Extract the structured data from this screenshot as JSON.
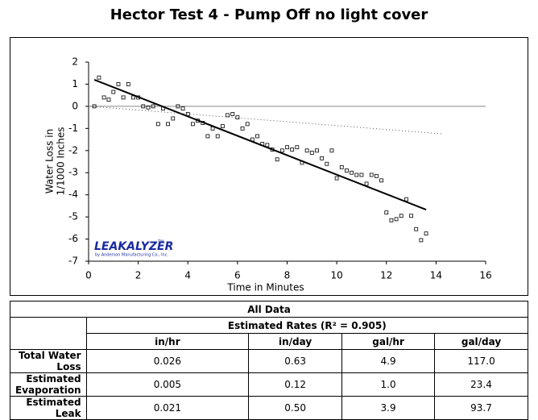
{
  "chart_data": {
    "type": "scatter",
    "title": "Hector Test 4 - Pump Off no light cover",
    "y_label": [
      "Water Loss in",
      "1/1000 Inches"
    ],
    "x_label": "Time in Minutes",
    "logo": "LEAKALYZER",
    "logo_mark": "TM",
    "logo_sub": "by Anderson Manufacturing Co., Inc.",
    "xlim": [
      0,
      16
    ],
    "xticks": [
      0,
      2,
      4,
      6,
      8,
      10,
      12,
      14,
      16
    ],
    "ylim": [
      -7,
      2
    ],
    "yticks": [
      -7,
      -6,
      -5,
      -4,
      -3,
      -2,
      -1,
      0,
      1,
      2
    ],
    "series": [
      {
        "type": "scatter",
        "color": "#000000",
        "x": [
          0.23,
          0.42,
          0.62,
          0.81,
          1.0,
          1.2,
          1.4,
          1.6,
          1.8,
          2.0,
          2.2,
          2.4,
          2.6,
          2.8,
          3.0,
          3.2,
          3.4,
          3.6,
          3.8,
          4.0,
          4.2,
          4.4,
          4.6,
          4.8,
          5.0,
          5.2,
          5.4,
          5.6,
          5.8,
          6.0,
          6.2,
          6.4,
          6.6,
          6.8,
          7.0,
          7.2,
          7.4,
          7.6,
          7.8,
          8.0,
          8.2,
          8.4,
          8.6,
          8.8,
          9.0,
          9.2,
          9.4,
          9.6,
          9.8,
          10.0,
          10.2,
          10.4,
          10.6,
          10.8,
          11.0,
          11.2,
          11.4,
          11.6,
          11.8,
          12.0,
          12.2,
          12.4,
          12.6,
          12.8,
          13.0,
          13.2,
          13.4,
          13.6
        ],
        "values": [
          0.0,
          1.3,
          0.4,
          0.3,
          0.65,
          1.0,
          0.4,
          1.0,
          0.4,
          0.4,
          0.0,
          -0.05,
          0.0,
          -0.8,
          -0.1,
          -0.8,
          -0.55,
          0.0,
          -0.1,
          -0.35,
          -0.8,
          -0.65,
          -0.75,
          -1.35,
          -1.0,
          -1.35,
          -0.9,
          -0.4,
          -0.35,
          -0.5,
          -1.0,
          -0.8,
          -1.5,
          -1.35,
          -1.7,
          -1.75,
          -1.95,
          -2.4,
          -2.0,
          -1.85,
          -1.95,
          -1.85,
          -2.55,
          -2.0,
          -2.1,
          -2.0,
          -2.35,
          -2.6,
          -2.0,
          -3.25,
          -2.75,
          -2.9,
          -3.0,
          -3.1,
          -3.1,
          -3.5,
          -3.1,
          -3.15,
          -3.35,
          -4.8,
          -5.15,
          -5.1,
          -4.95,
          -4.2,
          -4.95,
          -5.55,
          -6.05,
          -5.75
        ]
      },
      {
        "type": "line",
        "color": "#000000",
        "dash": false,
        "x": [
          0.23,
          13.6
        ],
        "values": [
          1.2,
          -4.67
        ]
      },
      {
        "type": "line",
        "color": "#555555",
        "dash": true,
        "x": [
          0.07,
          14.3
        ],
        "values": [
          0.0,
          -1.25
        ]
      }
    ]
  },
  "table": {
    "title": "All Data",
    "group_header": "Estimated Rates (R² = 0.905)",
    "columns": [
      "in/hr",
      "in/day",
      "gal/hr",
      "gal/day"
    ],
    "rows": [
      [
        "Total Water Loss",
        "0.026",
        "0.63",
        "4.9",
        "117.0"
      ],
      [
        "Estimated Evaporation",
        "0.005",
        "0.12",
        "1.0",
        "23.4"
      ],
      [
        "Estimated Leak",
        "0.021",
        "0.50",
        "3.9",
        "93.7"
      ]
    ]
  }
}
